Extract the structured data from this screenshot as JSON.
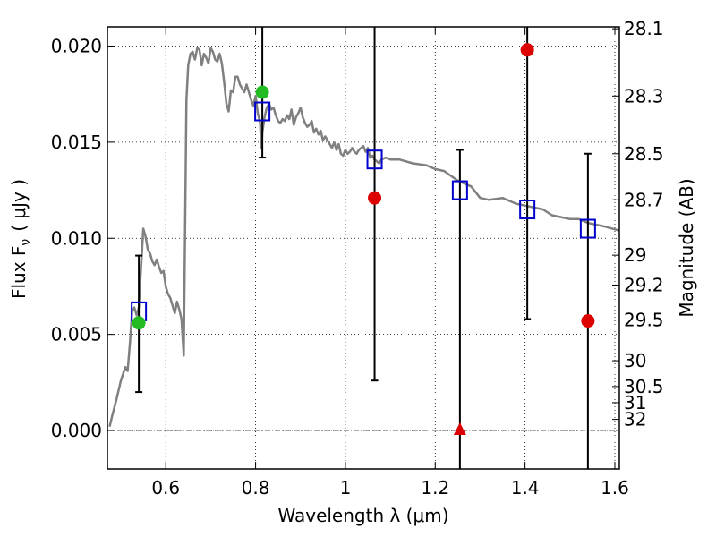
{
  "chart_data": {
    "type": "scatter",
    "xlabel": "Wavelength  λ (μm)",
    "ylabel_left": "Flux  F",
    "ylabel_left_sub": "ν",
    "ylabel_left_unit": "( μJy )",
    "ylabel_right": "Magnitude (AB)",
    "xlim": [
      0.47,
      1.61
    ],
    "ylim": [
      -0.002,
      0.021
    ],
    "grid": true,
    "x_ticks": [
      {
        "value": 0.6,
        "label": "0.6"
      },
      {
        "value": 0.8,
        "label": "0.8"
      },
      {
        "value": 1.0,
        "label": "1"
      },
      {
        "value": 1.2,
        "label": "1.2"
      },
      {
        "value": 1.4,
        "label": "1.4"
      },
      {
        "value": 1.6,
        "label": "1.6"
      }
    ],
    "y_ticks": [
      {
        "value": 0.0,
        "label": "0.000"
      },
      {
        "value": 0.005,
        "label": "0.005"
      },
      {
        "value": 0.01,
        "label": "0.010"
      },
      {
        "value": 0.015,
        "label": "0.015"
      },
      {
        "value": 0.02,
        "label": "0.020"
      }
    ],
    "mag_ticks": [
      {
        "flux": 0.0209,
        "label": "28.1"
      },
      {
        "flux": 0.0174,
        "label": "28.3"
      },
      {
        "flux": 0.0144,
        "label": "28.5"
      },
      {
        "flux": 0.012,
        "label": "28.7"
      },
      {
        "flux": 0.00912,
        "label": "29"
      },
      {
        "flux": 0.00757,
        "label": "29.2"
      },
      {
        "flux": 0.00575,
        "label": "29.5"
      },
      {
        "flux": 0.00363,
        "label": "30"
      },
      {
        "flux": 0.00229,
        "label": "30.5"
      },
      {
        "flux": 0.00145,
        "label": "31"
      },
      {
        "flux": 0.00058,
        "label": "32"
      }
    ],
    "model_sed": {
      "color": "#808080",
      "points": [
        [
          0.475,
          0.0002
        ],
        [
          0.48,
          0.0007
        ],
        [
          0.49,
          0.0016
        ],
        [
          0.5,
          0.0026
        ],
        [
          0.51,
          0.0033
        ],
        [
          0.515,
          0.0031
        ],
        [
          0.52,
          0.0045
        ],
        [
          0.525,
          0.0062
        ],
        [
          0.53,
          0.0064
        ],
        [
          0.535,
          0.006
        ],
        [
          0.54,
          0.0064
        ],
        [
          0.545,
          0.0085
        ],
        [
          0.55,
          0.0105
        ],
        [
          0.555,
          0.0101
        ],
        [
          0.56,
          0.0094
        ],
        [
          0.565,
          0.0092
        ],
        [
          0.57,
          0.0088
        ],
        [
          0.575,
          0.0086
        ],
        [
          0.58,
          0.0089
        ],
        [
          0.585,
          0.0085
        ],
        [
          0.59,
          0.0082
        ],
        [
          0.595,
          0.0083
        ],
        [
          0.6,
          0.0075
        ],
        [
          0.605,
          0.0071
        ],
        [
          0.61,
          0.0069
        ],
        [
          0.615,
          0.0065
        ],
        [
          0.62,
          0.0061
        ],
        [
          0.625,
          0.0067
        ],
        [
          0.63,
          0.0063
        ],
        [
          0.635,
          0.0058
        ],
        [
          0.64,
          0.0039
        ],
        [
          0.643,
          0.0105
        ],
        [
          0.646,
          0.0172
        ],
        [
          0.65,
          0.019
        ],
        [
          0.655,
          0.0196
        ],
        [
          0.66,
          0.0197
        ],
        [
          0.665,
          0.0193
        ],
        [
          0.67,
          0.0199
        ],
        [
          0.675,
          0.0198
        ],
        [
          0.68,
          0.019
        ],
        [
          0.685,
          0.0196
        ],
        [
          0.69,
          0.0194
        ],
        [
          0.695,
          0.0191
        ],
        [
          0.7,
          0.0199
        ],
        [
          0.705,
          0.0197
        ],
        [
          0.71,
          0.0193
        ],
        [
          0.715,
          0.0192
        ],
        [
          0.72,
          0.0196
        ],
        [
          0.725,
          0.0191
        ],
        [
          0.73,
          0.0181
        ],
        [
          0.735,
          0.017
        ],
        [
          0.74,
          0.0166
        ],
        [
          0.745,
          0.0177
        ],
        [
          0.75,
          0.0176
        ],
        [
          0.755,
          0.0184
        ],
        [
          0.76,
          0.0184
        ],
        [
          0.765,
          0.018
        ],
        [
          0.77,
          0.0178
        ],
        [
          0.775,
          0.0176
        ],
        [
          0.78,
          0.018
        ],
        [
          0.785,
          0.0176
        ],
        [
          0.79,
          0.0172
        ],
        [
          0.795,
          0.0169
        ],
        [
          0.8,
          0.0174
        ],
        [
          0.805,
          0.0165
        ],
        [
          0.81,
          0.016
        ],
        [
          0.813,
          0.0147
        ],
        [
          0.815,
          0.0155
        ],
        [
          0.82,
          0.0163
        ],
        [
          0.825,
          0.0168
        ],
        [
          0.83,
          0.017
        ],
        [
          0.835,
          0.0167
        ],
        [
          0.84,
          0.0168
        ],
        [
          0.845,
          0.0164
        ],
        [
          0.85,
          0.0161
        ],
        [
          0.855,
          0.016
        ],
        [
          0.86,
          0.0162
        ],
        [
          0.865,
          0.0161
        ],
        [
          0.87,
          0.0164
        ],
        [
          0.875,
          0.0162
        ],
        [
          0.88,
          0.0167
        ],
        [
          0.885,
          0.0159
        ],
        [
          0.89,
          0.0163
        ],
        [
          0.895,
          0.0165
        ],
        [
          0.9,
          0.0168
        ],
        [
          0.905,
          0.0163
        ],
        [
          0.91,
          0.016
        ],
        [
          0.915,
          0.0158
        ],
        [
          0.92,
          0.0159
        ],
        [
          0.925,
          0.0161
        ],
        [
          0.93,
          0.0155
        ],
        [
          0.935,
          0.0157
        ],
        [
          0.94,
          0.0154
        ],
        [
          0.945,
          0.0156
        ],
        [
          0.95,
          0.0151
        ],
        [
          0.955,
          0.0153
        ],
        [
          0.96,
          0.0151
        ],
        [
          0.965,
          0.0149
        ],
        [
          0.97,
          0.0147
        ],
        [
          0.975,
          0.015
        ],
        [
          0.98,
          0.0146
        ],
        [
          0.985,
          0.0149
        ],
        [
          0.99,
          0.0144
        ],
        [
          0.995,
          0.0143
        ],
        [
          1.0,
          0.0146
        ],
        [
          1.005,
          0.0144
        ],
        [
          1.01,
          0.0145
        ],
        [
          1.015,
          0.0147
        ],
        [
          1.02,
          0.0145
        ],
        [
          1.025,
          0.0144
        ],
        [
          1.03,
          0.0146
        ],
        [
          1.035,
          0.0147
        ],
        [
          1.04,
          0.0148
        ],
        [
          1.045,
          0.0145
        ],
        [
          1.05,
          0.0147
        ],
        [
          1.055,
          0.0142
        ],
        [
          1.06,
          0.0143
        ],
        [
          1.065,
          0.0141
        ],
        [
          1.07,
          0.014
        ],
        [
          1.075,
          0.0139
        ],
        [
          1.08,
          0.0141
        ],
        [
          1.09,
          0.0142
        ],
        [
          1.1,
          0.0141
        ],
        [
          1.12,
          0.0141
        ],
        [
          1.15,
          0.0139
        ],
        [
          1.18,
          0.0138
        ],
        [
          1.2,
          0.0136
        ],
        [
          1.22,
          0.0135
        ],
        [
          1.25,
          0.013
        ],
        [
          1.28,
          0.0127
        ],
        [
          1.3,
          0.0121
        ],
        [
          1.32,
          0.012
        ],
        [
          1.35,
          0.0121
        ],
        [
          1.38,
          0.0118
        ],
        [
          1.4,
          0.0117
        ],
        [
          1.42,
          0.0116
        ],
        [
          1.44,
          0.0115
        ],
        [
          1.46,
          0.0112
        ],
        [
          1.48,
          0.0111
        ],
        [
          1.5,
          0.011
        ],
        [
          1.52,
          0.011
        ],
        [
          1.54,
          0.0108
        ],
        [
          1.56,
          0.0107
        ],
        [
          1.58,
          0.0106
        ],
        [
          1.61,
          0.0104
        ]
      ]
    },
    "series": [
      {
        "marker": "open-square",
        "color": "#0000cc",
        "points": [
          {
            "x": 0.54,
            "y": 0.0062
          },
          {
            "x": 0.815,
            "y": 0.0166
          },
          {
            "x": 1.065,
            "y": 0.0141
          },
          {
            "x": 1.255,
            "y": 0.0125
          },
          {
            "x": 1.405,
            "y": 0.0115
          },
          {
            "x": 1.54,
            "y": 0.0105
          }
        ]
      },
      {
        "marker": "circle",
        "color": "#22bb22",
        "points": [
          {
            "x": 0.54,
            "y": 0.0056,
            "err_low": 0.002,
            "err_high": 0.0091
          },
          {
            "x": 0.815,
            "y": 0.0176,
            "err_low": 0.0142,
            "err_high": 0.021
          }
        ]
      },
      {
        "marker": "circle",
        "color": "#dd0000",
        "points": [
          {
            "x": 1.065,
            "y": 0.0121,
            "err_low": 0.0026,
            "err_high": 0.021
          },
          {
            "x": 1.405,
            "y": 0.0198,
            "err_low": 0.0058,
            "err_high": 0.021
          },
          {
            "x": 1.54,
            "y": 0.0057,
            "err_low": -0.002,
            "err_high": 0.0144
          }
        ]
      },
      {
        "marker": "triangle",
        "color": "#dd0000",
        "points": [
          {
            "x": 1.255,
            "y": 0.0,
            "err_low": -0.002,
            "err_high": 0.0146
          }
        ]
      }
    ]
  }
}
